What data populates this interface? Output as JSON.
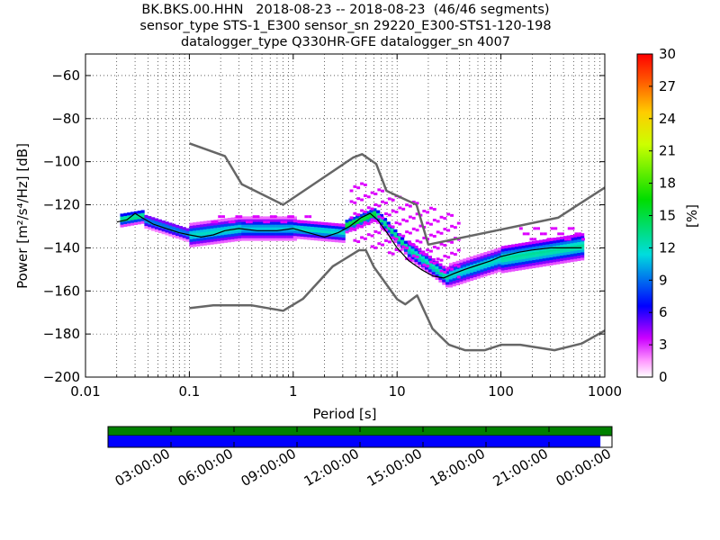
{
  "title_lines": [
    "BK.BKS.00.HHN   2018-08-23 -- 2018-08-23  (46/46 segments)",
    "sensor_type STS-1_E300 sensor_sn 29220_E300-STS1-120-198",
    "datalogger_type Q330HR-GFE datalogger_sn 4007"
  ],
  "chart_data": {
    "type": "heatmap",
    "xlabel": "Period [s]",
    "ylabel": "Power [m²/s⁴/Hz] [dB]",
    "x_scale": "log",
    "xlim": [
      0.01,
      1000
    ],
    "ylim": [
      -200,
      -50
    ],
    "x_ticks": [
      0.01,
      0.1,
      1,
      10,
      100,
      1000
    ],
    "x_tick_labels": [
      "0.01",
      "0.1",
      "1",
      "10",
      "100",
      "1000"
    ],
    "y_ticks": [
      -200,
      -180,
      -160,
      -140,
      -120,
      -100,
      -80,
      -60
    ],
    "y_tick_labels": [
      "−200",
      "−180",
      "−160",
      "−140",
      "−120",
      "−100",
      "−80",
      "−60"
    ],
    "grid": true,
    "colorbar": {
      "label": "[%]",
      "range": [
        0,
        30
      ],
      "ticks": [
        0,
        3,
        6,
        9,
        12,
        15,
        18,
        21,
        24,
        27,
        30
      ],
      "tick_labels": [
        "0",
        "3",
        "6",
        "9",
        "12",
        "15",
        "18",
        "21",
        "24",
        "27",
        "30"
      ]
    },
    "psd_mode": {
      "period": [
        0.02,
        0.025,
        0.03,
        0.035,
        0.045,
        0.06,
        0.08,
        0.1,
        0.13,
        0.17,
        0.22,
        0.3,
        0.45,
        0.7,
        1.0,
        1.4,
        2.0,
        2.7,
        3.5,
        4.5,
        5.5,
        6.5,
        8,
        10,
        13,
        17,
        22,
        28,
        35,
        45,
        60,
        80,
        100,
        150,
        200,
        300,
        450,
        600
      ],
      "power": [
        -128,
        -127,
        -124,
        -126,
        -129,
        -131,
        -133,
        -134,
        -135,
        -134,
        -132,
        -131,
        -132,
        -132,
        -131,
        -133,
        -135,
        -133,
        -130,
        -126,
        -124,
        -127,
        -133,
        -140,
        -146,
        -150,
        -153,
        -154,
        -152,
        -150,
        -148,
        -146,
        -144,
        -142,
        -141,
        -140,
        -140,
        -140
      ]
    },
    "nhnm": {
      "period": [
        0.1,
        0.22,
        0.32,
        0.8,
        3.8,
        4.6,
        6.3,
        7.9,
        15.4,
        20,
        354.8,
        1000
      ],
      "power": [
        -91.5,
        -97.4,
        -110.5,
        -120,
        -98,
        -96.5,
        -101,
        -113.5,
        -120,
        -138.5,
        -126,
        -112
      ]
    },
    "nlnm": {
      "period": [
        0.1,
        0.17,
        0.4,
        0.8,
        1.24,
        2.4,
        4.3,
        5,
        6,
        10,
        12,
        15.6,
        21.9,
        31.6,
        45,
        70,
        101,
        154,
        328,
        600,
        1000
      ],
      "power": [
        -168,
        -166.7,
        -166.7,
        -169.2,
        -163.7,
        -148.6,
        -141.1,
        -141.1,
        -149,
        -163.8,
        -166.2,
        -162.1,
        -177.5,
        -185,
        -187.5,
        -187.5,
        -185,
        -185,
        -187.5,
        -184.4,
        -178.4
      ]
    },
    "histogram_bands": [
      {
        "p0": 0.02,
        "p1": 0.035,
        "center": [
          -127,
          -125
        ],
        "halfwidth": 3,
        "density": 14
      },
      {
        "p0": 0.035,
        "p1": 0.1,
        "center": [
          -127,
          -134
        ],
        "halfwidth": 3,
        "density": 10
      },
      {
        "p0": 0.1,
        "p1": 0.3,
        "center": [
          -134,
          -131
        ],
        "halfwidth": 5,
        "density": 12
      },
      {
        "p0": 0.3,
        "p1": 1.0,
        "center": [
          -131,
          -131
        ],
        "halfwidth": 5,
        "density": 11
      },
      {
        "p0": 1.0,
        "p1": 3.0,
        "center": [
          -131,
          -133
        ],
        "halfwidth": 4,
        "density": 12
      },
      {
        "p0": 3.0,
        "p1": 6.0,
        "center": [
          -130,
          -124
        ],
        "halfwidth": 3,
        "density": 16
      },
      {
        "p0": 6.0,
        "p1": 12,
        "center": [
          -124,
          -140
        ],
        "halfwidth": 3,
        "density": 14
      },
      {
        "p0": 12,
        "p1": 30,
        "center": [
          -140,
          -154
        ],
        "halfwidth": 4,
        "density": 13
      },
      {
        "p0": 30,
        "p1": 100,
        "center": [
          -153,
          -145
        ],
        "halfwidth": 5,
        "density": 12
      },
      {
        "p0": 100,
        "p1": 600,
        "center": [
          -145,
          -139
        ],
        "halfwidth": 6,
        "density": 13
      }
    ],
    "scatter_bands": [
      {
        "p0": 3.5,
        "p1": 40,
        "center": [
          -122,
          -140
        ],
        "halfwidth": 14
      },
      {
        "p0": 150,
        "p1": 600,
        "center": [
          -133,
          -133
        ],
        "halfwidth": 3
      },
      {
        "p0": 0.15,
        "p1": 1.5,
        "center": [
          -126,
          -126
        ],
        "halfwidth": 2
      }
    ]
  },
  "timeline": {
    "tick_labels": [
      "03:00:00",
      "06:00:00",
      "09:00:00",
      "12:00:00",
      "15:00:00",
      "18:00:00",
      "21:00:00",
      "00:00:00"
    ],
    "top_bar_color": "#008000",
    "coverage_color": "#0000ff",
    "coverage_fraction": 0.977
  }
}
